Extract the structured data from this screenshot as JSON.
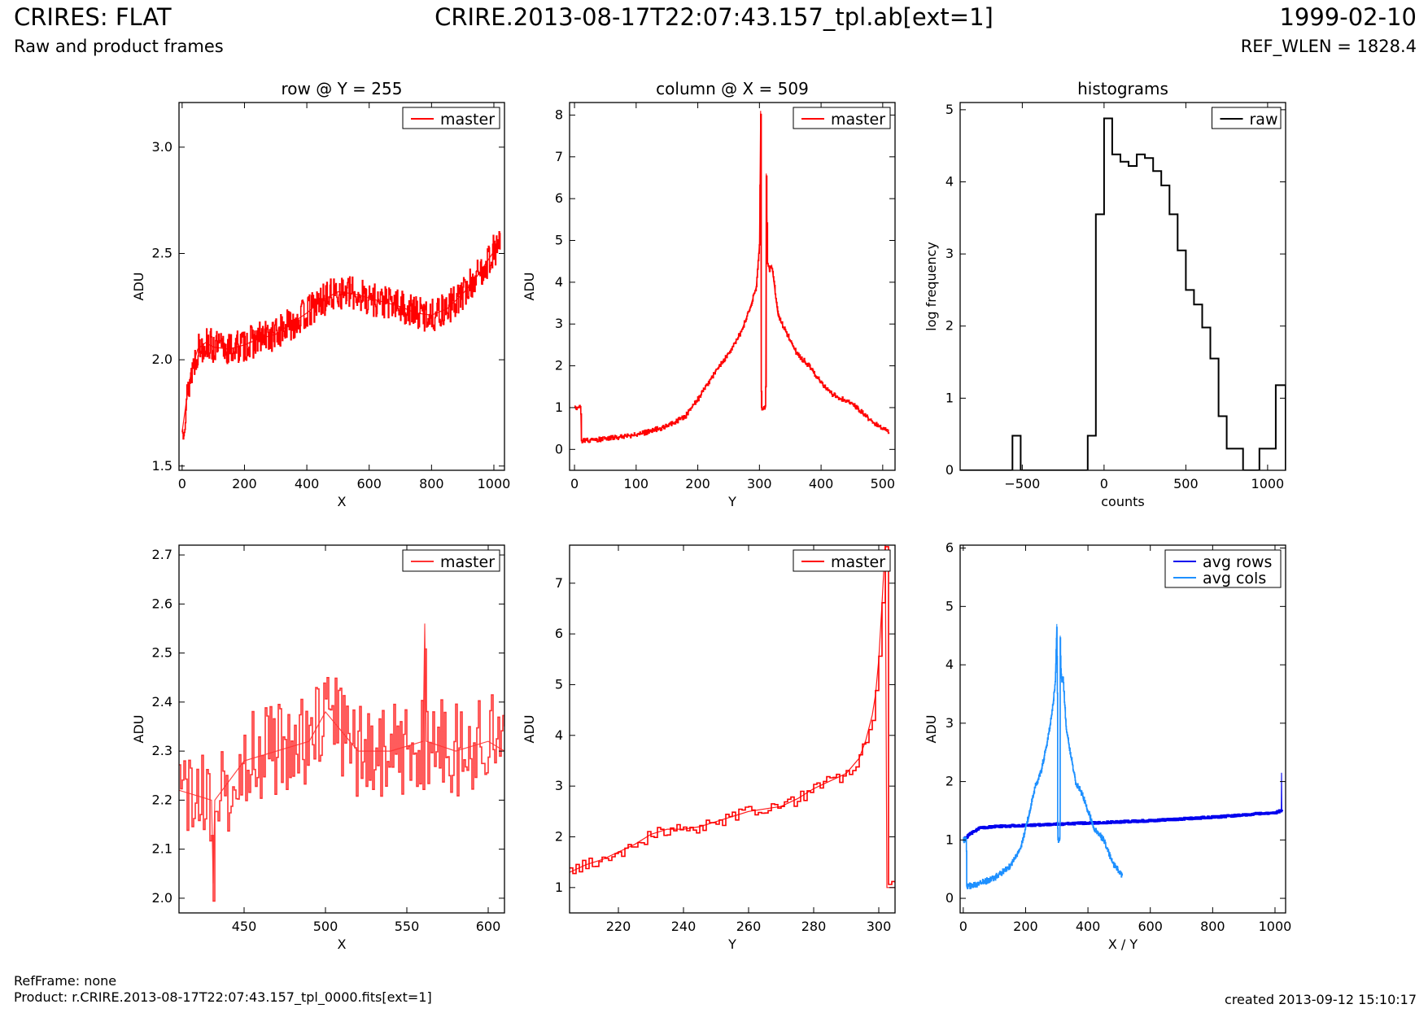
{
  "header": {
    "left_title": "CRIRES: FLAT",
    "left_subtitle": "Raw and product frames",
    "center_title": "CRIRE.2013-08-17T22:07:43.157_tpl.ab[ext=1]",
    "right_title": "1999-02-10",
    "right_subtitle": "REF_WLEN = 1828.4"
  },
  "footer": {
    "ref_frame": "RefFrame: none",
    "product": "Product: r.CRIRE.2013-08-17T22:07:43.157_tpl_0000.fits[ext=1]",
    "created": "created 2013-09-12 15:10:17"
  },
  "chart_data": [
    {
      "id": "row",
      "type": "line",
      "title": "row @ Y = 255",
      "xlabel": "X",
      "ylabel": "ADU",
      "xlim": [
        -10,
        1034
      ],
      "ylim": [
        1.48,
        3.21
      ],
      "xticks": [
        0,
        200,
        400,
        600,
        800,
        1000
      ],
      "yticks": [
        1.5,
        2.0,
        2.5,
        3.0
      ],
      "ytick_labels": [
        "1.5",
        "2.0",
        "2.5",
        "3.0"
      ],
      "legend": "top-right",
      "series": [
        {
          "name": "master",
          "color": "#ff0000",
          "x": [
            0,
            15,
            30,
            50,
            75,
            100,
            150,
            200,
            250,
            300,
            350,
            400,
            450,
            500,
            550,
            600,
            650,
            700,
            750,
            800,
            850,
            900,
            950,
            1000,
            1020
          ],
          "y": [
            1.66,
            1.82,
            1.95,
            2.05,
            2.08,
            2.06,
            2.05,
            2.07,
            2.1,
            2.12,
            2.17,
            2.22,
            2.28,
            2.32,
            2.31,
            2.29,
            2.27,
            2.25,
            2.22,
            2.21,
            2.24,
            2.31,
            2.4,
            2.51,
            2.56
          ],
          "noise": 0.08,
          "samples": 600
        }
      ]
    },
    {
      "id": "column",
      "type": "line",
      "title": "column @ X = 509",
      "xlabel": "Y",
      "ylabel": "ADU",
      "xlim": [
        -8,
        520
      ],
      "ylim": [
        -0.5,
        8.3
      ],
      "xticks": [
        0,
        100,
        200,
        300,
        400,
        500
      ],
      "yticks": [
        0,
        1,
        2,
        3,
        4,
        5,
        6,
        7,
        8
      ],
      "ytick_labels": [
        "0",
        "1",
        "2",
        "3",
        "4",
        "5",
        "6",
        "7",
        "8"
      ],
      "legend": "top-right",
      "series": [
        {
          "name": "master",
          "color": "#ff0000",
          "x": [
            0,
            10,
            11,
            50,
            100,
            150,
            180,
            200,
            230,
            250,
            270,
            285,
            295,
            300,
            302,
            303,
            305,
            310,
            311,
            313,
            316,
            320,
            330,
            340,
            360,
            380,
            400,
            420,
            450,
            480,
            500,
            510
          ],
          "y": [
            1,
            1,
            0.2,
            0.25,
            0.35,
            0.55,
            0.8,
            1.2,
            1.9,
            2.3,
            2.8,
            3.4,
            3.9,
            4.9,
            8.1,
            1,
            1,
            1,
            6.6,
            4.5,
            4.3,
            4.4,
            3.2,
            2.9,
            2.3,
            2.0,
            1.6,
            1.3,
            1.1,
            0.7,
            0.5,
            0.4
          ],
          "noise": 0.06,
          "samples": 500
        }
      ]
    },
    {
      "id": "histograms",
      "type": "bar",
      "title": "histograms",
      "xlabel": "counts",
      "ylabel": "log frequency",
      "xlim": [
        -880,
        1110
      ],
      "ylim": [
        0,
        5.1
      ],
      "xticks": [
        -500,
        0,
        500,
        1000
      ],
      "xtick_labels": [
        "−500",
        "0",
        "500",
        "1000"
      ],
      "yticks": [
        0,
        1,
        2,
        3,
        4,
        5
      ],
      "ytick_labels": [
        "0",
        "1",
        "2",
        "3",
        "4",
        "5"
      ],
      "legend": "top-right",
      "series": [
        {
          "name": "raw",
          "color": "#000000",
          "bin_edges": [
            -880,
            -560,
            -510,
            -100,
            -50,
            0,
            50,
            100,
            150,
            200,
            250,
            300,
            350,
            400,
            450,
            500,
            550,
            600,
            650,
            700,
            750,
            850,
            950,
            1050,
            1110
          ],
          "values": [
            0,
            0.48,
            0,
            0.48,
            3.55,
            4.88,
            4.38,
            4.28,
            4.22,
            4.38,
            4.33,
            4.15,
            3.95,
            3.55,
            3.05,
            2.5,
            2.3,
            1.98,
            1.55,
            0.75,
            0.3,
            0,
            0.3,
            1.18
          ]
        }
      ]
    },
    {
      "id": "row-zoom",
      "type": "line",
      "title": "",
      "xlabel": "X",
      "ylabel": "ADU",
      "xlim": [
        410,
        610
      ],
      "ylim": [
        1.97,
        2.72
      ],
      "xticks": [
        450,
        500,
        550,
        600
      ],
      "yticks": [
        2.0,
        2.1,
        2.2,
        2.3,
        2.4,
        2.5,
        2.6,
        2.7
      ],
      "ytick_labels": [
        "2.0",
        "2.1",
        "2.2",
        "2.3",
        "2.4",
        "2.5",
        "2.6",
        "2.7"
      ],
      "legend": "top-right",
      "series": [
        {
          "name": "master",
          "color": "#ff3333",
          "x": [
            410,
            430,
            431,
            432,
            450,
            470,
            490,
            500,
            520,
            540,
            560,
            561,
            562,
            580,
            600,
            610
          ],
          "y": [
            2.22,
            2.2,
            2.03,
            2.2,
            2.28,
            2.3,
            2.32,
            2.38,
            2.3,
            2.3,
            2.32,
            2.56,
            2.32,
            2.3,
            2.32,
            2.3
          ],
          "noise": 0.1,
          "samples": 200
        }
      ]
    },
    {
      "id": "column-zoom",
      "type": "line",
      "title": "",
      "xlabel": "Y",
      "ylabel": "ADU",
      "xlim": [
        205,
        305
      ],
      "ylim": [
        0.5,
        7.75
      ],
      "xticks": [
        220,
        240,
        260,
        280,
        300
      ],
      "yticks": [
        1,
        2,
        3,
        4,
        5,
        6,
        7
      ],
      "ytick_labels": [
        "1",
        "2",
        "3",
        "4",
        "5",
        "6",
        "7"
      ],
      "legend": "top-right",
      "series": [
        {
          "name": "master",
          "color": "#ff0000",
          "x": [
            205,
            210,
            215,
            220,
            225,
            230,
            235,
            240,
            245,
            250,
            255,
            260,
            265,
            270,
            275,
            280,
            285,
            290,
            294,
            296,
            298,
            299,
            300,
            301,
            302,
            302.5,
            303,
            305
          ],
          "y": [
            1.3,
            1.45,
            1.55,
            1.7,
            1.85,
            2.05,
            2.15,
            2.15,
            2.2,
            2.3,
            2.4,
            2.5,
            2.55,
            2.6,
            2.75,
            2.95,
            3.1,
            3.25,
            3.55,
            3.9,
            4.4,
            4.8,
            5.5,
            6.6,
            7.8,
            1,
            1,
            1
          ],
          "noise": 0.12,
          "samples": 100
        }
      ]
    },
    {
      "id": "averages",
      "type": "line",
      "title": "",
      "xlabel": "X / Y",
      "ylabel": "ADU",
      "xlim": [
        -10,
        1034
      ],
      "ylim": [
        -0.25,
        6.05
      ],
      "xticks": [
        0,
        200,
        400,
        600,
        800,
        1000
      ],
      "yticks": [
        0,
        1,
        2,
        3,
        4,
        5,
        6
      ],
      "ytick_labels": [
        "0",
        "1",
        "2",
        "3",
        "4",
        "5",
        "6"
      ],
      "legend": "top-right",
      "series": [
        {
          "name": "avg rows",
          "color": "#0000ee",
          "x": [
            0,
            20,
            50,
            100,
            200,
            300,
            400,
            500,
            600,
            700,
            800,
            900,
            1000,
            1020,
            1021,
            1022
          ],
          "y": [
            1.0,
            1.1,
            1.2,
            1.23,
            1.25,
            1.27,
            1.29,
            1.31,
            1.33,
            1.36,
            1.39,
            1.43,
            1.47,
            1.5,
            2.15,
            1.5
          ],
          "noise": 0.015,
          "samples": 500
        },
        {
          "name": "avg cols",
          "color": "#1e90ff",
          "x": [
            0,
            10,
            11,
            50,
            100,
            150,
            180,
            200,
            230,
            250,
            270,
            285,
            295,
            300,
            302,
            303,
            305,
            310,
            311,
            313,
            316,
            320,
            330,
            340,
            360,
            380,
            400,
            420,
            450,
            480,
            500,
            510
          ],
          "y": [
            1,
            1,
            0.2,
            0.25,
            0.35,
            0.55,
            0.8,
            1.2,
            1.9,
            2.2,
            2.7,
            3.2,
            3.7,
            4.7,
            3.5,
            1,
            1,
            1,
            4.5,
            3.9,
            3.7,
            3.8,
            2.9,
            2.6,
            2.0,
            1.8,
            1.5,
            1.2,
            1.0,
            0.6,
            0.45,
            0.4
          ],
          "noise": 0.05,
          "samples": 500
        }
      ]
    }
  ]
}
